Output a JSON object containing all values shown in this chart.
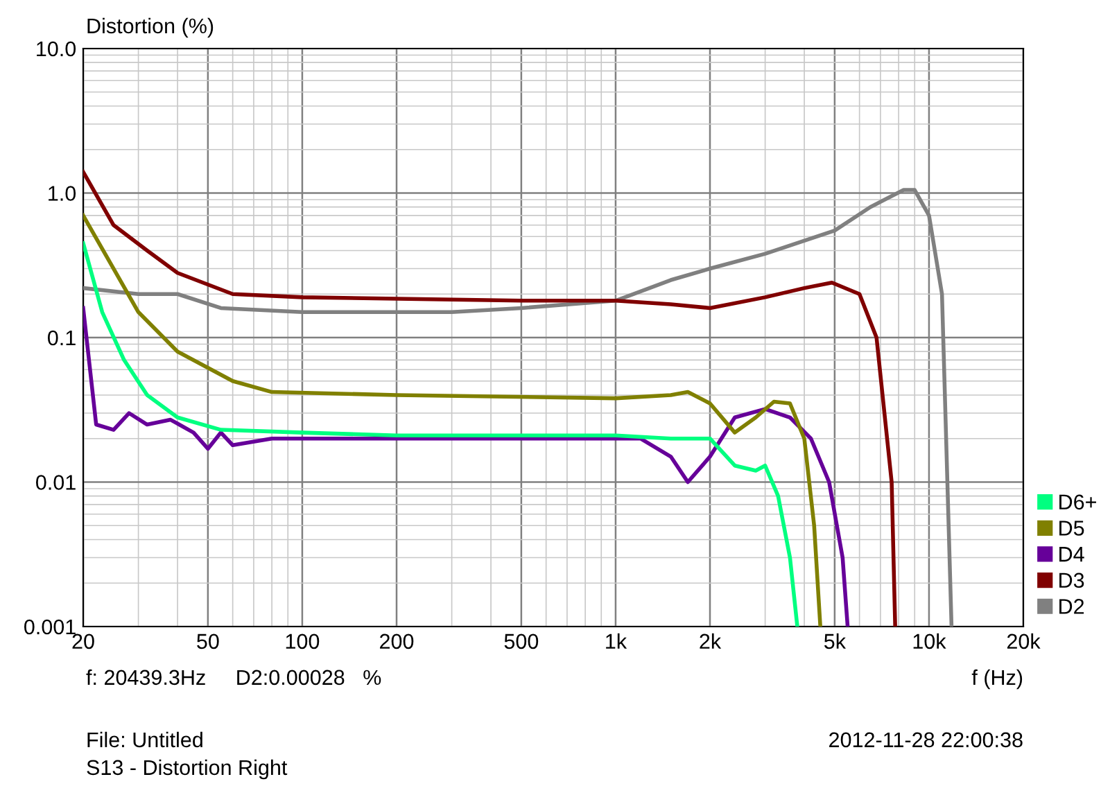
{
  "chart_data": {
    "type": "line",
    "ylabel": "Distortion (%)",
    "xlabel": "f (Hz)",
    "log": "xy",
    "grid": true,
    "legend": "bottom right",
    "marker": "none",
    "line_style": "solid",
    "xlim": [
      20,
      20000
    ],
    "xticks": [
      20,
      50,
      100,
      200,
      500,
      {
        "value": 1000,
        "label": "1k"
      },
      {
        "value": 2000,
        "label": "2k"
      },
      {
        "value": 5000,
        "label": "5k"
      },
      {
        "value": 10000,
        "label": "10k"
      },
      {
        "value": 20000,
        "label": "20k"
      }
    ],
    "ylim": [
      0.001,
      10
    ],
    "yticks": [
      0.001,
      0.01,
      0.1,
      {
        "value": 1,
        "label": "1.0"
      },
      {
        "value": 10,
        "label": "10.0"
      }
    ],
    "series": [
      {
        "name": "D6+",
        "color": "#00ff80",
        "x": [
          20,
          23,
          27,
          32,
          40,
          55,
          100,
          200,
          500,
          1000,
          1500,
          2000,
          2400,
          2800,
          3000,
          3300,
          3600,
          3800
        ],
        "values": [
          0.45,
          0.15,
          0.07,
          0.04,
          0.028,
          0.023,
          0.022,
          0.021,
          0.021,
          0.021,
          0.02,
          0.02,
          0.013,
          0.012,
          0.013,
          0.008,
          0.003,
          0.001
        ]
      },
      {
        "name": "D5",
        "color": "#808000",
        "x": [
          20,
          25,
          30,
          40,
          60,
          80,
          200,
          1000,
          1500,
          1700,
          2000,
          2400,
          2800,
          3200,
          3600,
          4000,
          4300,
          4500
        ],
        "values": [
          0.7,
          0.3,
          0.15,
          0.08,
          0.05,
          0.042,
          0.04,
          0.038,
          0.04,
          0.042,
          0.035,
          0.022,
          0.028,
          0.036,
          0.035,
          0.02,
          0.005,
          0.001
        ]
      },
      {
        "name": "D4",
        "color": "#660099",
        "x": [
          20,
          22,
          25,
          28,
          32,
          38,
          45,
          50,
          55,
          60,
          80,
          100,
          1000,
          1200,
          1500,
          1700,
          2000,
          2400,
          3000,
          3600,
          4200,
          4800,
          5300,
          5500
        ],
        "values": [
          0.16,
          0.025,
          0.023,
          0.03,
          0.025,
          0.027,
          0.022,
          0.017,
          0.022,
          0.018,
          0.02,
          0.02,
          0.02,
          0.02,
          0.015,
          0.01,
          0.015,
          0.028,
          0.032,
          0.028,
          0.02,
          0.01,
          0.003,
          0.001
        ]
      },
      {
        "name": "D3",
        "color": "#800000",
        "x": [
          20,
          25,
          32,
          40,
          60,
          100,
          500,
          1000,
          1500,
          2000,
          3000,
          4000,
          4900,
          6000,
          6800,
          7600,
          7800
        ],
        "values": [
          1.4,
          0.6,
          0.4,
          0.28,
          0.2,
          0.19,
          0.18,
          0.18,
          0.17,
          0.16,
          0.19,
          0.22,
          0.24,
          0.2,
          0.1,
          0.01,
          0.001
        ]
      },
      {
        "name": "D2",
        "color": "#808080",
        "x": [
          20,
          30,
          40,
          55,
          100,
          300,
          500,
          1000,
          1500,
          2000,
          3000,
          5000,
          6500,
          8300,
          9000,
          10000,
          11000,
          11800
        ],
        "values": [
          0.22,
          0.2,
          0.2,
          0.16,
          0.15,
          0.15,
          0.16,
          0.18,
          0.25,
          0.3,
          0.38,
          0.55,
          0.8,
          1.05,
          1.05,
          0.7,
          0.2,
          0.001
        ]
      }
    ],
    "annotations": [
      "f: 20439.3Hz     D2:0.00028   %",
      "File: Untitled",
      "2012-11-28 22:00:38",
      "S13 - Distortion Right"
    ]
  }
}
